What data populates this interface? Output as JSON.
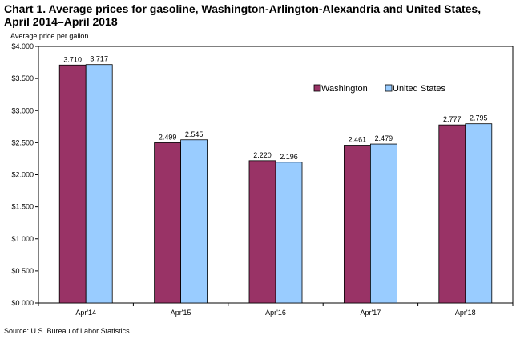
{
  "chart_data": {
    "type": "bar",
    "title": "Chart 1. Average prices for gasoline, Washington-Arlington-Alexandria and United States, April 2014–April 2018",
    "ylabel": "Average price per gallon",
    "xlabel": "",
    "categories": [
      "Apr'14",
      "Apr'15",
      "Apr'16",
      "Apr'17",
      "Apr'18"
    ],
    "series": [
      {
        "name": "Washington",
        "color": "#993366",
        "values": [
          3.71,
          2.499,
          2.22,
          2.461,
          2.777
        ],
        "labels": [
          "3.710",
          "2.499",
          "2.220",
          "2.461",
          "2.777"
        ]
      },
      {
        "name": "United States",
        "color": "#99ccff",
        "values": [
          3.717,
          2.545,
          2.196,
          2.479,
          2.795
        ],
        "labels": [
          "3.717",
          "2.545",
          "2.196",
          "2.479",
          "2.795"
        ]
      }
    ],
    "ylim": [
      0,
      4
    ],
    "yticks": [
      0,
      0.5,
      1,
      1.5,
      2,
      2.5,
      3,
      3.5,
      4
    ],
    "ytick_labels": [
      "$0.000",
      "$0.500",
      "$1.000",
      "$1.500",
      "$2.000",
      "$2.500",
      "$3.000",
      "$3.500",
      "$4.000"
    ],
    "grid": false,
    "legend_position": "top-right"
  },
  "source": "Source: U.S. Bureau of Labor Statistics."
}
